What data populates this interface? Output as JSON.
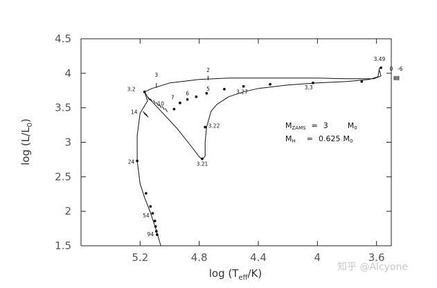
{
  "chart_data": {
    "type": "line",
    "xlabel": "log (T",
    "xlabel_sub": "eff",
    "xlabel_tail": "/K)",
    "ylabel": "log (L/L",
    "ylabel_sub": "0",
    "ylabel_tail": ")",
    "x_axis_reversed": true,
    "xlim": [
      5.6,
      3.5
    ],
    "ylim": [
      1.5,
      4.5
    ],
    "x_ticks": [
      "5.2",
      "4.8",
      "4.4",
      "4",
      "3.6"
    ],
    "x_tick_values": [
      5.2,
      4.8,
      4.4,
      4.0,
      3.6
    ],
    "y_ticks": [
      "1.5",
      "2",
      "2.5",
      "3",
      "3.5",
      "4",
      "4.5"
    ],
    "y_tick_values": [
      1.5,
      2.0,
      2.5,
      3.0,
      3.5,
      4.0,
      4.5
    ],
    "grid": false,
    "series": [
      {
        "values": [
          [
            3.58,
            4.04
          ],
          [
            3.57,
            3.96
          ],
          [
            3.62,
            3.92
          ],
          [
            3.8,
            3.92
          ],
          [
            4.0,
            3.93
          ],
          [
            4.3,
            3.93
          ],
          [
            4.6,
            3.93
          ],
          [
            4.8,
            3.91
          ],
          [
            5.0,
            3.86
          ],
          [
            5.12,
            3.78
          ],
          [
            5.17,
            3.73
          ],
          [
            5.15,
            3.66
          ],
          [
            5.08,
            3.5
          ],
          [
            4.95,
            3.2
          ],
          [
            4.85,
            2.93
          ],
          [
            4.8,
            2.79
          ],
          [
            4.78,
            2.75
          ],
          [
            4.76,
            2.8
          ],
          [
            4.76,
            3.0
          ],
          [
            4.75,
            3.22
          ],
          [
            4.72,
            3.45
          ],
          [
            4.68,
            3.55
          ],
          [
            4.6,
            3.66
          ],
          [
            4.5,
            3.73
          ],
          [
            4.4,
            3.78
          ],
          [
            4.2,
            3.83
          ],
          [
            4.0,
            3.86
          ],
          [
            3.8,
            3.88
          ],
          [
            3.65,
            3.91
          ],
          [
            3.59,
            3.95
          ],
          [
            3.58,
            4.08
          ]
        ]
      },
      {
        "values": [
          [
            5.17,
            3.73
          ],
          [
            5.15,
            3.6
          ],
          [
            5.2,
            3.42
          ],
          [
            5.22,
            3.1
          ],
          [
            5.22,
            2.73
          ],
          [
            5.2,
            2.4
          ],
          [
            5.17,
            2.2
          ],
          [
            5.13,
            1.98
          ],
          [
            5.09,
            1.72
          ],
          [
            5.06,
            1.5
          ]
        ]
      }
    ],
    "points": [
      [
        3.57,
        4.08
      ],
      [
        3.7,
        3.88
      ],
      [
        4.03,
        3.86
      ],
      [
        4.32,
        3.84
      ],
      [
        4.5,
        3.81
      ],
      [
        4.63,
        3.77
      ],
      [
        4.75,
        3.71
      ],
      [
        4.82,
        3.66
      ],
      [
        4.88,
        3.62
      ],
      [
        4.93,
        3.57
      ],
      [
        4.97,
        3.48
      ],
      [
        4.76,
        3.22
      ],
      [
        4.78,
        2.76
      ],
      [
        5.17,
        3.73
      ],
      [
        5.22,
        2.73
      ],
      [
        5.16,
        2.26
      ],
      [
        5.13,
        2.07
      ],
      [
        5.115,
        1.97
      ],
      [
        5.1,
        1.86
      ],
      [
        5.095,
        1.78
      ],
      [
        5.09,
        1.71
      ],
      [
        5.085,
        1.66
      ]
    ],
    "annotations": [
      {
        "text": "3.49",
        "x": 3.58,
        "y": 4.18
      },
      {
        "text": "0",
        "x": 3.5,
        "y": 4.04
      },
      {
        "text": "-6",
        "x": 3.44,
        "y": 4.04
      },
      {
        "text": "2",
        "x": 4.74,
        "y": 4.02
      },
      {
        "text": "3",
        "x": 5.09,
        "y": 3.95
      },
      {
        "text": "3.2",
        "x": 5.26,
        "y": 3.74
      },
      {
        "text": "5",
        "x": 4.74,
        "y": 3.75
      },
      {
        "text": "6",
        "x": 4.88,
        "y": 3.68
      },
      {
        "text": "7",
        "x": 4.98,
        "y": 3.62
      },
      {
        "text": "10",
        "x": 5.06,
        "y": 3.53
      },
      {
        "text": "14",
        "x": 5.24,
        "y": 3.41
      },
      {
        "text": "3.27",
        "x": 4.51,
        "y": 3.7
      },
      {
        "text": "3.3",
        "x": 4.06,
        "y": 3.77
      },
      {
        "text": "3.22",
        "x": 4.7,
        "y": 3.21
      },
      {
        "text": "3.21",
        "x": 4.78,
        "y": 2.66
      },
      {
        "text": "24",
        "x": 5.26,
        "y": 2.69
      },
      {
        "text": "54",
        "x": 5.16,
        "y": 1.91
      },
      {
        "text": "94",
        "x": 5.13,
        "y": 1.64
      }
    ],
    "legend_lines": [
      {
        "label": "M",
        "sub": "ZAMS",
        "eq": "=",
        "value": "3",
        "unit": "M",
        "unit_sub": "0"
      },
      {
        "label": "M",
        "sub": "H",
        "eq": "=",
        "value": "0.625",
        "unit": "M",
        "unit_sub": "0"
      }
    ]
  },
  "watermark": "知乎 @Alcyone"
}
